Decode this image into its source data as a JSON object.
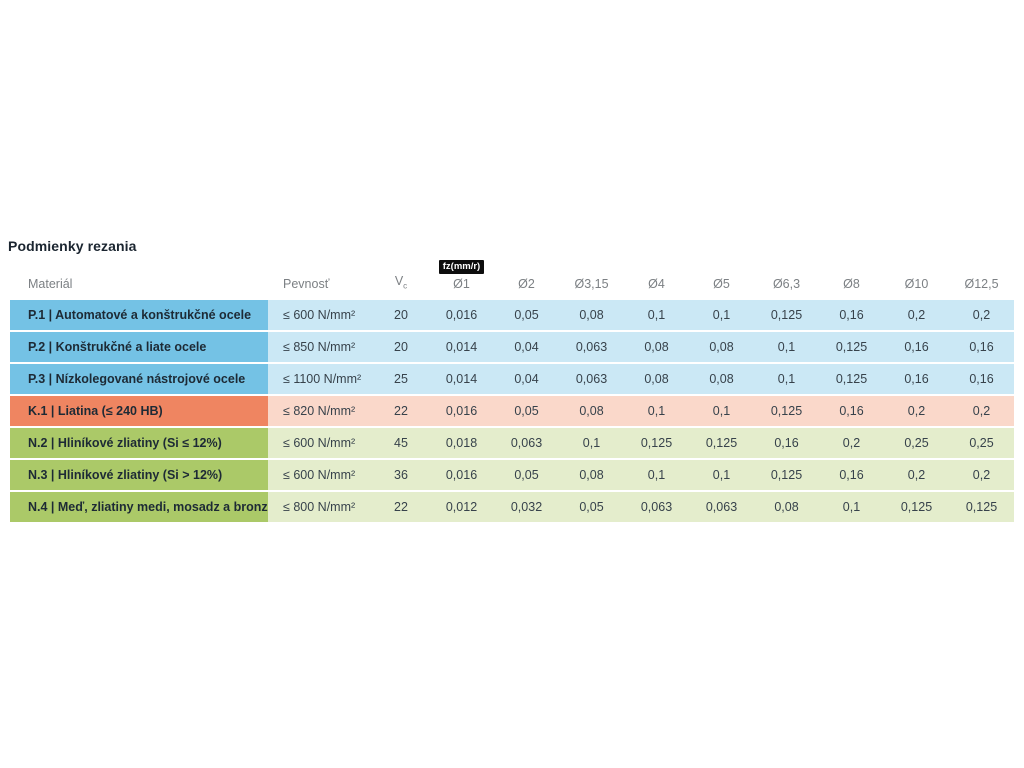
{
  "page": {
    "title": "Podmienky rezania"
  },
  "table": {
    "badge": "fz(mm/r)",
    "headers": {
      "material": "Materiál",
      "strength": "Pevnosť",
      "vc_base": "V",
      "vc_sub": "c",
      "diameters": [
        "Ø1",
        "Ø2",
        "Ø3,15",
        "Ø4",
        "Ø5",
        "Ø6,3",
        "Ø8",
        "Ø10",
        "Ø12,5"
      ]
    },
    "rows": [
      {
        "group": "p",
        "material": "P.1 | Automatové a konštrukčné ocele",
        "strength": "≤ 600 N/mm²",
        "vc": "20",
        "fz": [
          "0,016",
          "0,05",
          "0,08",
          "0,1",
          "0,1",
          "0,125",
          "0,16",
          "0,2",
          "0,2"
        ]
      },
      {
        "group": "p",
        "material": "P.2 | Konštrukčné a liate ocele",
        "strength": "≤ 850 N/mm²",
        "vc": "20",
        "fz": [
          "0,014",
          "0,04",
          "0,063",
          "0,08",
          "0,08",
          "0,1",
          "0,125",
          "0,16",
          "0,16"
        ]
      },
      {
        "group": "p",
        "material": "P.3 | Nízkolegované nástrojové ocele",
        "strength": "≤ 1100 N/mm²",
        "vc": "25",
        "fz": [
          "0,014",
          "0,04",
          "0,063",
          "0,08",
          "0,08",
          "0,1",
          "0,125",
          "0,16",
          "0,16"
        ]
      },
      {
        "group": "k",
        "material": "K.1 | Liatina (≤ 240 HB)",
        "strength": "≤ 820 N/mm²",
        "vc": "22",
        "fz": [
          "0,016",
          "0,05",
          "0,08",
          "0,1",
          "0,1",
          "0,125",
          "0,16",
          "0,2",
          "0,2"
        ]
      },
      {
        "group": "n",
        "material": "N.2 | Hliníkové zliatiny (Si ≤ 12%)",
        "strength": "≤ 600 N/mm²",
        "vc": "45",
        "fz": [
          "0,018",
          "0,063",
          "0,1",
          "0,125",
          "0,125",
          "0,16",
          "0,2",
          "0,25",
          "0,25"
        ]
      },
      {
        "group": "n",
        "material": "N.3 | Hliníkové zliatiny (Si > 12%)",
        "strength": "≤ 600 N/mm²",
        "vc": "36",
        "fz": [
          "0,016",
          "0,05",
          "0,08",
          "0,1",
          "0,1",
          "0,125",
          "0,16",
          "0,2",
          "0,2"
        ]
      },
      {
        "group": "n",
        "material": "N.4 | Meď, zliatiny medi, mosadz a bronz",
        "strength": "≤ 800 N/mm²",
        "vc": "22",
        "fz": [
          "0,012",
          "0,032",
          "0,05",
          "0,063",
          "0,063",
          "0,08",
          "0,1",
          "0,125",
          "0,125"
        ]
      }
    ],
    "colors": {
      "p": {
        "dark": "#74C2E5",
        "light": "#CBE8F5"
      },
      "k": {
        "dark": "#EF8561",
        "light": "#FAD8CA"
      },
      "n": {
        "dark": "#ABC968",
        "light": "#E4EDCC"
      }
    }
  }
}
